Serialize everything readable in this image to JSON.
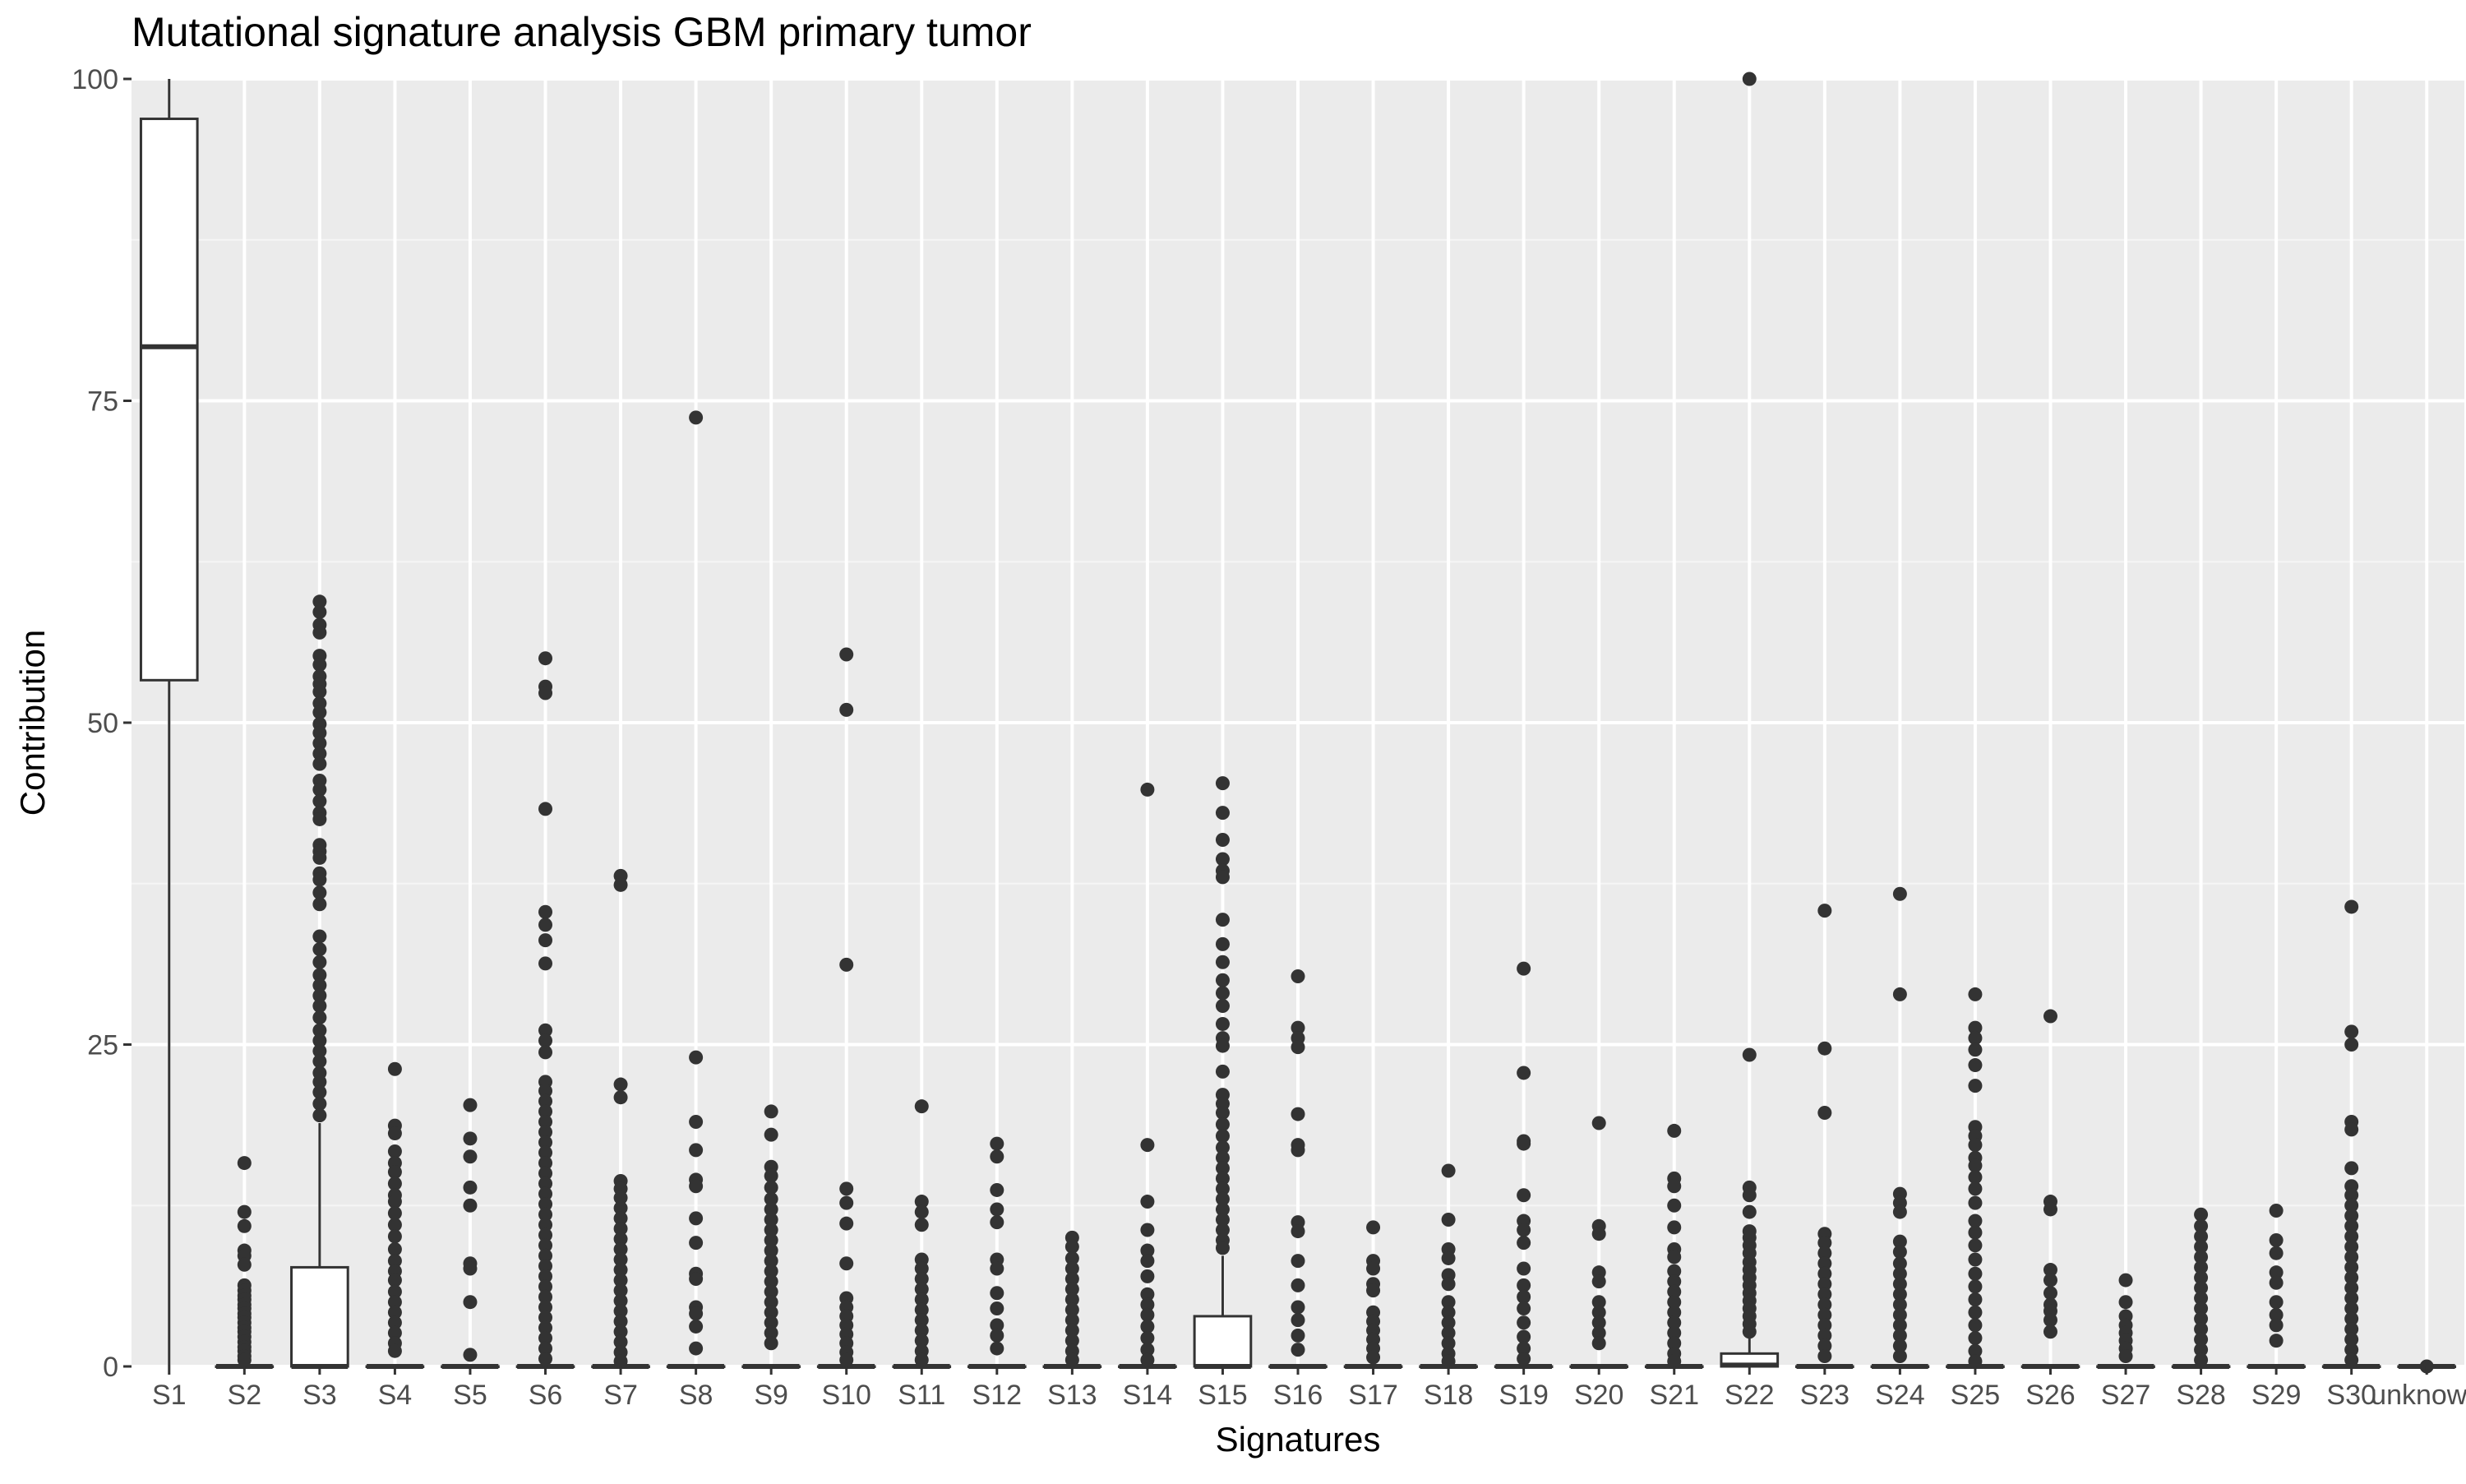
{
  "chart_data": {
    "type": "box",
    "title": "Mutational signature analysis GBM primary tumor",
    "xlabel": "Signatures",
    "ylabel": "Contribution",
    "ylim": [
      0,
      100
    ],
    "yticks": [
      0,
      25,
      50,
      75,
      100
    ],
    "grid": true,
    "legend": "none",
    "colors": {
      "panel": "#EBEBEB",
      "grid_major": "#FFFFFF",
      "box_fill": "#FFFFFF",
      "box_stroke": "#333333",
      "outlier": "#333333",
      "tick_label": "#4D4D4D"
    },
    "categories": [
      "S1",
      "S2",
      "S3",
      "S4",
      "S5",
      "S6",
      "S7",
      "S8",
      "S9",
      "S10",
      "S11",
      "S12",
      "S13",
      "S14",
      "S15",
      "S16",
      "S17",
      "S18",
      "S19",
      "S20",
      "S21",
      "S22",
      "S23",
      "S24",
      "S25",
      "S26",
      "S27",
      "S28",
      "S29",
      "S30",
      "unknown"
    ],
    "boxes": [
      {
        "q1": 53.3,
        "median": 79.2,
        "q3": 96.9,
        "whisker_low": 0,
        "whisker_high": 100,
        "outliers": []
      },
      {
        "q1": 0,
        "median": 0,
        "q3": 0,
        "whisker_low": 0,
        "whisker_high": 0,
        "outliers": [
          15.8,
          12.0,
          10.9,
          9.0,
          8.6,
          7.9,
          6.3,
          5.9,
          5.5,
          5.2,
          4.8,
          4.5,
          4.1,
          3.8,
          3.4,
          3.0,
          2.7,
          2.3,
          1.9,
          1.5,
          1.2,
          0.8,
          0.5
        ]
      },
      {
        "q1": 0,
        "median": 0,
        "q3": 7.7,
        "whisker_low": 0,
        "whisker_high": 18.9,
        "outliers": [
          59.4,
          58.6,
          57.6,
          57.0,
          55.2,
          54.5,
          53.6,
          53.0,
          52.4,
          51.5,
          50.8,
          49.9,
          49.2,
          48.4,
          47.6,
          46.8,
          45.5,
          44.8,
          43.9,
          43.0,
          42.5,
          40.5,
          40.0,
          39.5,
          38.3,
          37.8,
          36.8,
          35.9,
          33.4,
          32.4,
          31.4,
          30.4,
          29.6,
          28.8,
          28.0,
          27.1,
          26.1,
          25.3,
          24.5,
          23.7,
          22.8,
          22.1,
          21.3,
          20.4,
          19.5
        ]
      },
      {
        "q1": 0,
        "median": 0,
        "q3": 0,
        "whisker_low": 0,
        "whisker_high": 0,
        "outliers": [
          23.1,
          18.7,
          18.1,
          16.7,
          15.8,
          15.1,
          14.2,
          13.3,
          12.8,
          11.9,
          11.0,
          10.1,
          9.1,
          8.2,
          7.4,
          6.7,
          5.8,
          5.0,
          4.2,
          3.4,
          2.6,
          1.8,
          1.2
        ]
      },
      {
        "q1": 0,
        "median": 0,
        "q3": 0,
        "whisker_low": 0,
        "whisker_high": 0,
        "outliers": [
          20.3,
          17.7,
          16.3,
          13.9,
          12.5,
          8.0,
          7.6,
          5.0,
          0.9
        ]
      },
      {
        "q1": 0,
        "median": 0,
        "q3": 0,
        "whisker_low": 0,
        "whisker_high": 0,
        "outliers": [
          55.0,
          52.8,
          52.3,
          43.3,
          35.3,
          34.3,
          33.1,
          31.3,
          26.1,
          25.3,
          24.4,
          22.1,
          21.4,
          20.6,
          19.8,
          19.0,
          18.2,
          17.4,
          16.6,
          15.8,
          15.0,
          14.2,
          13.4,
          12.6,
          11.8,
          11.0,
          10.2,
          9.4,
          8.6,
          7.8,
          7.0,
          6.2,
          5.4,
          4.6,
          3.8,
          3.0,
          2.2,
          1.4,
          0.6
        ]
      },
      {
        "q1": 0,
        "median": 0,
        "q3": 0,
        "whisker_low": 0,
        "whisker_high": 0,
        "outliers": [
          38.1,
          37.4,
          21.9,
          20.9,
          14.4,
          13.8,
          13.1,
          12.3,
          11.5,
          10.7,
          9.9,
          9.1,
          8.3,
          7.5,
          6.7,
          5.9,
          5.1,
          4.3,
          3.5,
          2.7,
          1.9,
          1.1,
          0.4
        ]
      },
      {
        "q1": 0,
        "median": 0,
        "q3": 0,
        "whisker_low": 0,
        "whisker_high": 0,
        "outliers": [
          73.7,
          24.0,
          19.0,
          16.8,
          14.5,
          14.0,
          11.5,
          9.6,
          7.2,
          6.8,
          4.6,
          4.1,
          3.1,
          1.4
        ]
      },
      {
        "q1": 0,
        "median": 0,
        "q3": 0,
        "whisker_low": 0,
        "whisker_high": 0,
        "outliers": [
          19.8,
          18.0,
          15.5,
          14.8,
          13.9,
          13.0,
          12.2,
          11.4,
          10.6,
          9.8,
          9.0,
          8.2,
          7.4,
          6.6,
          5.8,
          5.0,
          4.2,
          3.4,
          2.6,
          1.8
        ]
      },
      {
        "q1": 0,
        "median": 0,
        "q3": 0,
        "whisker_low": 0,
        "whisker_high": 0,
        "outliers": [
          55.3,
          51.0,
          31.2,
          13.8,
          12.7,
          11.1,
          8.0,
          5.3,
          4.6,
          3.9,
          3.2,
          2.5,
          1.8,
          1.1,
          0.5
        ]
      },
      {
        "q1": 0,
        "median": 0,
        "q3": 0,
        "whisker_low": 0,
        "whisker_high": 0,
        "outliers": [
          20.2,
          12.8,
          12.0,
          11.0,
          8.3,
          7.6,
          6.8,
          6.0,
          5.2,
          4.4,
          3.6,
          2.8,
          2.0,
          1.2,
          0.5
        ]
      },
      {
        "q1": 0,
        "median": 0,
        "q3": 0,
        "whisker_low": 0,
        "whisker_high": 0,
        "outliers": [
          17.3,
          16.3,
          13.7,
          12.2,
          11.2,
          8.3,
          7.6,
          5.7,
          4.5,
          3.2,
          2.4,
          1.4
        ]
      },
      {
        "q1": 0,
        "median": 0,
        "q3": 0,
        "whisker_low": 0,
        "whisker_high": 0,
        "outliers": [
          10.0,
          9.3,
          8.4,
          7.6,
          6.8,
          6.0,
          5.2,
          4.4,
          3.6,
          2.8,
          2.0,
          1.2,
          0.5
        ]
      },
      {
        "q1": 0,
        "median": 0,
        "q3": 0,
        "whisker_low": 0,
        "whisker_high": 0,
        "outliers": [
          44.8,
          17.2,
          12.8,
          10.6,
          9.0,
          8.2,
          7.0,
          5.6,
          4.8,
          4.0,
          3.1,
          2.2,
          1.3,
          0.5
        ]
      },
      {
        "q1": 0,
        "median": 0,
        "q3": 3.9,
        "whisker_low": 0,
        "whisker_high": 8.6,
        "outliers": [
          45.3,
          43.0,
          40.9,
          39.4,
          38.5,
          38.0,
          34.7,
          32.8,
          31.4,
          30.0,
          29.0,
          28.0,
          26.6,
          25.5,
          24.9,
          22.9,
          21.1,
          20.4,
          19.7,
          18.8,
          17.9,
          17.0,
          16.2,
          15.4,
          14.6,
          13.8,
          13.0,
          12.2,
          11.4,
          10.6,
          9.8,
          9.2
        ]
      },
      {
        "q1": 0,
        "median": 0,
        "q3": 0,
        "whisker_low": 0,
        "whisker_high": 0,
        "outliers": [
          30.3,
          26.3,
          25.5,
          24.8,
          19.6,
          17.2,
          16.8,
          11.2,
          10.5,
          8.2,
          6.3,
          4.6,
          3.6,
          2.4,
          1.3
        ]
      },
      {
        "q1": 0,
        "median": 0,
        "q3": 0,
        "whisker_low": 0,
        "whisker_high": 0,
        "outliers": [
          10.8,
          8.2,
          7.6,
          6.4,
          5.9,
          4.2,
          3.5,
          2.8,
          2.1,
          1.4,
          0.7
        ]
      },
      {
        "q1": 0,
        "median": 0,
        "q3": 0,
        "whisker_low": 0,
        "whisker_high": 0,
        "outliers": [
          15.2,
          11.4,
          9.1,
          8.4,
          7.1,
          6.4,
          5.0,
          4.2,
          3.4,
          2.6,
          1.8,
          1.0,
          0.4
        ]
      },
      {
        "q1": 0,
        "median": 0,
        "q3": 0,
        "whisker_low": 0,
        "whisker_high": 0,
        "outliers": [
          30.9,
          22.8,
          17.5,
          17.3,
          13.3,
          11.3,
          10.6,
          9.6,
          7.6,
          6.3,
          5.4,
          4.5,
          3.4,
          2.3,
          1.4,
          0.6
        ]
      },
      {
        "q1": 0,
        "median": 0,
        "q3": 0,
        "whisker_low": 0,
        "whisker_high": 0,
        "outliers": [
          18.9,
          10.9,
          10.3,
          7.3,
          6.6,
          5.0,
          4.2,
          3.4,
          2.6,
          1.8
        ]
      },
      {
        "q1": 0,
        "median": 0,
        "q3": 0,
        "whisker_low": 0,
        "whisker_high": 0,
        "outliers": [
          18.3,
          14.6,
          14.0,
          12.5,
          10.8,
          9.1,
          8.5,
          7.4,
          6.6,
          5.8,
          5.0,
          4.2,
          3.4,
          2.6,
          1.8,
          1.0,
          0.4
        ]
      },
      {
        "q1": 0,
        "median": 0.1,
        "q3": 1.0,
        "whisker_low": 0,
        "whisker_high": 2.2,
        "outliers": [
          100.0,
          24.2,
          13.9,
          13.3,
          12.0,
          10.5,
          10.0,
          9.4,
          8.8,
          8.1,
          7.5,
          6.9,
          6.3,
          5.7,
          5.1,
          4.5,
          3.9,
          3.3,
          2.7
        ]
      },
      {
        "q1": 0,
        "median": 0,
        "q3": 0,
        "whisker_low": 0,
        "whisker_high": 0,
        "outliers": [
          35.4,
          24.7,
          19.7,
          10.3,
          9.6,
          8.8,
          8.0,
          7.2,
          6.4,
          5.6,
          4.8,
          4.0,
          3.2,
          2.4,
          1.6,
          0.8
        ]
      },
      {
        "q1": 0,
        "median": 0,
        "q3": 0,
        "whisker_low": 0,
        "whisker_high": 0,
        "outliers": [
          36.7,
          28.9,
          13.4,
          12.7,
          12.0,
          9.7,
          8.9,
          8.0,
          7.2,
          6.4,
          5.6,
          4.8,
          4.0,
          3.2,
          2.4,
          1.6,
          0.8
        ]
      },
      {
        "q1": 0,
        "median": 0,
        "q3": 0,
        "whisker_low": 0,
        "whisker_high": 0,
        "outliers": [
          28.9,
          26.3,
          25.5,
          24.6,
          23.4,
          21.8,
          18.6,
          17.9,
          17.2,
          16.2,
          15.6,
          14.7,
          13.8,
          12.7,
          11.3,
          10.4,
          9.4,
          8.3,
          7.2,
          6.2,
          5.2,
          4.2,
          3.2,
          2.2,
          1.2,
          0.4
        ]
      },
      {
        "q1": 0,
        "median": 0,
        "q3": 0,
        "whisker_low": 0,
        "whisker_high": 0,
        "outliers": [
          27.2,
          12.8,
          12.2,
          7.5,
          6.7,
          5.7,
          4.8,
          4.3,
          3.6,
          2.7
        ]
      },
      {
        "q1": 0,
        "median": 0,
        "q3": 0,
        "whisker_low": 0,
        "whisker_high": 0,
        "outliers": [
          6.7,
          5.0,
          3.9,
          3.2,
          2.6,
          2.0,
          1.4,
          0.8
        ]
      },
      {
        "q1": 0,
        "median": 0,
        "q3": 0,
        "whisker_low": 0,
        "whisker_high": 0,
        "outliers": [
          11.8,
          10.9,
          10.1,
          9.3,
          8.5,
          7.7,
          6.9,
          6.1,
          5.3,
          4.5,
          3.7,
          2.9,
          2.1,
          1.3,
          0.5
        ]
      },
      {
        "q1": 0,
        "median": 0,
        "q3": 0,
        "whisker_low": 0,
        "whisker_high": 0,
        "outliers": [
          12.1,
          9.8,
          8.8,
          7.3,
          6.5,
          5.0,
          4.0,
          3.2,
          2.0
        ]
      },
      {
        "q1": 0,
        "median": 0,
        "q3": 0,
        "whisker_low": 0,
        "whisker_high": 0,
        "outliers": [
          35.7,
          26.0,
          25.0,
          19.0,
          18.4,
          15.4,
          14.0,
          13.3,
          12.5,
          11.7,
          10.9,
          10.1,
          9.3,
          8.5,
          7.7,
          6.9,
          6.1,
          5.3,
          4.5,
          3.7,
          2.9,
          2.1,
          1.3,
          0.5
        ]
      },
      {
        "q1": 0,
        "median": 0,
        "q3": 0,
        "whisker_low": 0,
        "whisker_high": 0,
        "outliers": [
          0.0
        ]
      }
    ]
  }
}
